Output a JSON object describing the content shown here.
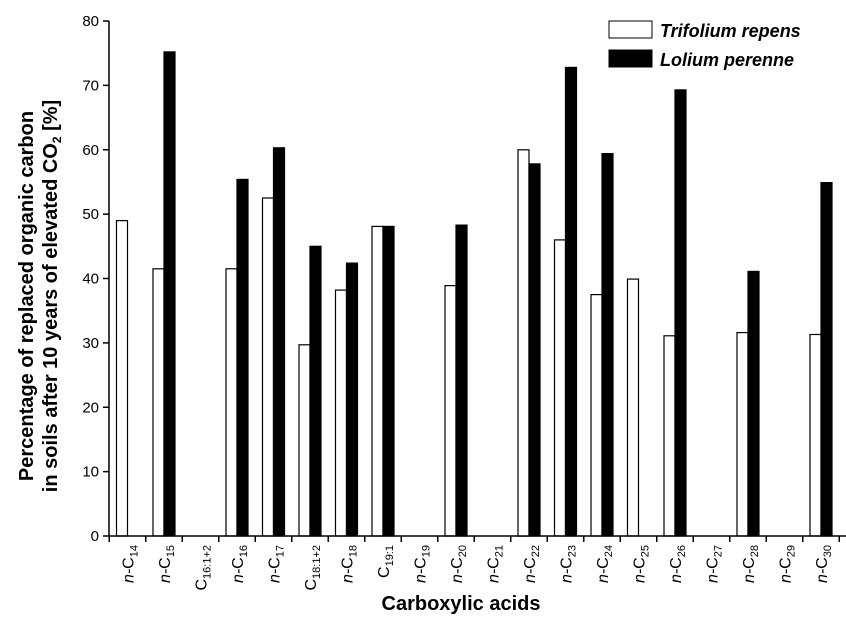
{
  "chart_data": {
    "type": "bar",
    "xlabel": "Carboxylic acids",
    "ylabel_line1": "Percentage of replaced organic carbon",
    "ylabel_line2_prefix": "in soils after 10 years of elevated CO",
    "ylabel_line2_sub": "2",
    "ylabel_line2_suffix": " [%]",
    "ylim": [
      0,
      80
    ],
    "yticks": [
      "0",
      "10",
      "20",
      "30",
      "40",
      "50",
      "60",
      "70",
      "80"
    ],
    "categories": [
      {
        "prefix": "n-",
        "base": "C",
        "sub": "14"
      },
      {
        "prefix": "n-",
        "base": "C",
        "sub": "15"
      },
      {
        "prefix": "",
        "base": "C",
        "sub": "16:1+2"
      },
      {
        "prefix": "n-",
        "base": "C",
        "sub": "16"
      },
      {
        "prefix": "n-",
        "base": "C",
        "sub": "17"
      },
      {
        "prefix": "",
        "base": "C",
        "sub": "18:1+2"
      },
      {
        "prefix": "n-",
        "base": "C",
        "sub": "18"
      },
      {
        "prefix": "",
        "base": "C",
        "sub": "19:1"
      },
      {
        "prefix": "n-",
        "base": "C",
        "sub": "19"
      },
      {
        "prefix": "n-",
        "base": "C",
        "sub": "20"
      },
      {
        "prefix": "n-",
        "base": "C",
        "sub": "21"
      },
      {
        "prefix": "n-",
        "base": "C",
        "sub": "22"
      },
      {
        "prefix": "n-",
        "base": "C",
        "sub": "23"
      },
      {
        "prefix": "n-",
        "base": "C",
        "sub": "24"
      },
      {
        "prefix": "n-",
        "base": "C",
        "sub": "25"
      },
      {
        "prefix": "n-",
        "base": "C",
        "sub": "26"
      },
      {
        "prefix": "n-",
        "base": "C",
        "sub": "27"
      },
      {
        "prefix": "n-",
        "base": "C",
        "sub": "28"
      },
      {
        "prefix": "n-",
        "base": "C",
        "sub": "29"
      },
      {
        "prefix": "n-",
        "base": "C",
        "sub": "30"
      }
    ],
    "series": [
      {
        "name": "Trifolium repens",
        "fill": "#ffffff",
        "values": [
          49,
          41.5,
          null,
          41.5,
          52.5,
          29.7,
          38.2,
          48.1,
          null,
          38.9,
          null,
          60,
          46,
          37.5,
          39.9,
          31.1,
          null,
          31.6,
          null,
          31.3
        ]
      },
      {
        "name": "Lolium perenne",
        "fill": "#000000",
        "values": [
          null,
          75.2,
          null,
          55.4,
          60.3,
          45,
          42.4,
          48.1,
          null,
          48.3,
          null,
          57.8,
          72.8,
          59.4,
          null,
          69.3,
          null,
          41.1,
          null,
          54.9
        ]
      }
    ],
    "legend_position": "top-right",
    "grid": false
  }
}
